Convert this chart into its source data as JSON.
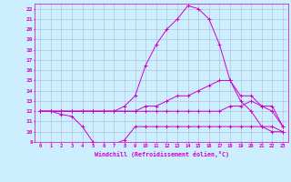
{
  "xlabel": "Windchill (Refroidissement éolien,°C)",
  "bg_color": "#cceeff",
  "line_color": "#cc00cc",
  "grid_color": "#aabbcc",
  "xlim": [
    -0.5,
    23.5
  ],
  "ylim": [
    9,
    22.5
  ],
  "yticks": [
    9,
    10,
    11,
    12,
    13,
    14,
    15,
    16,
    17,
    18,
    19,
    20,
    21,
    22
  ],
  "xticks": [
    0,
    1,
    2,
    3,
    4,
    5,
    6,
    7,
    8,
    9,
    10,
    11,
    12,
    13,
    14,
    15,
    16,
    17,
    18,
    19,
    20,
    21,
    22,
    23
  ],
  "line1_x": [
    0,
    1,
    2,
    3,
    4,
    5,
    6,
    7,
    8,
    9,
    10,
    11,
    12,
    13,
    14,
    15,
    16,
    17,
    18,
    19,
    20,
    21,
    22,
    23
  ],
  "line1_y": [
    12,
    12,
    11.7,
    11.5,
    10.5,
    9,
    8.8,
    8.8,
    9.2,
    10.5,
    10.5,
    10.5,
    10.5,
    10.5,
    10.5,
    10.5,
    10.5,
    10.5,
    10.5,
    10.5,
    10.5,
    10.5,
    10.5,
    10
  ],
  "line2_x": [
    0,
    1,
    2,
    3,
    4,
    5,
    6,
    7,
    8,
    9,
    10,
    11,
    12,
    13,
    14,
    15,
    16,
    17,
    18,
    19,
    20,
    21,
    22,
    23
  ],
  "line2_y": [
    12,
    12,
    12,
    12,
    12,
    12,
    12,
    12,
    12,
    12,
    12,
    12,
    12,
    12,
    12,
    12,
    12,
    12,
    12.5,
    12.5,
    13,
    12.5,
    12,
    10.5
  ],
  "line3_x": [
    0,
    1,
    2,
    3,
    4,
    5,
    6,
    7,
    8,
    9,
    10,
    11,
    12,
    13,
    14,
    15,
    16,
    17,
    18,
    19,
    20,
    21,
    22,
    23
  ],
  "line3_y": [
    12,
    12,
    12,
    12,
    12,
    12,
    12,
    12,
    12,
    12,
    12.5,
    12.5,
    13,
    13.5,
    13.5,
    14,
    14.5,
    15,
    15,
    13.5,
    13.5,
    12.5,
    12.5,
    10.5
  ],
  "line4_x": [
    0,
    1,
    2,
    3,
    4,
    5,
    6,
    7,
    8,
    9,
    10,
    11,
    12,
    13,
    14,
    15,
    16,
    17,
    18,
    19,
    20,
    21,
    22,
    23
  ],
  "line4_y": [
    12,
    12,
    12,
    12,
    12,
    12,
    12,
    12,
    12.5,
    13.5,
    16.5,
    18.5,
    20,
    21,
    22.3,
    22,
    21,
    18.5,
    15,
    13,
    12,
    10.5,
    10,
    10
  ]
}
